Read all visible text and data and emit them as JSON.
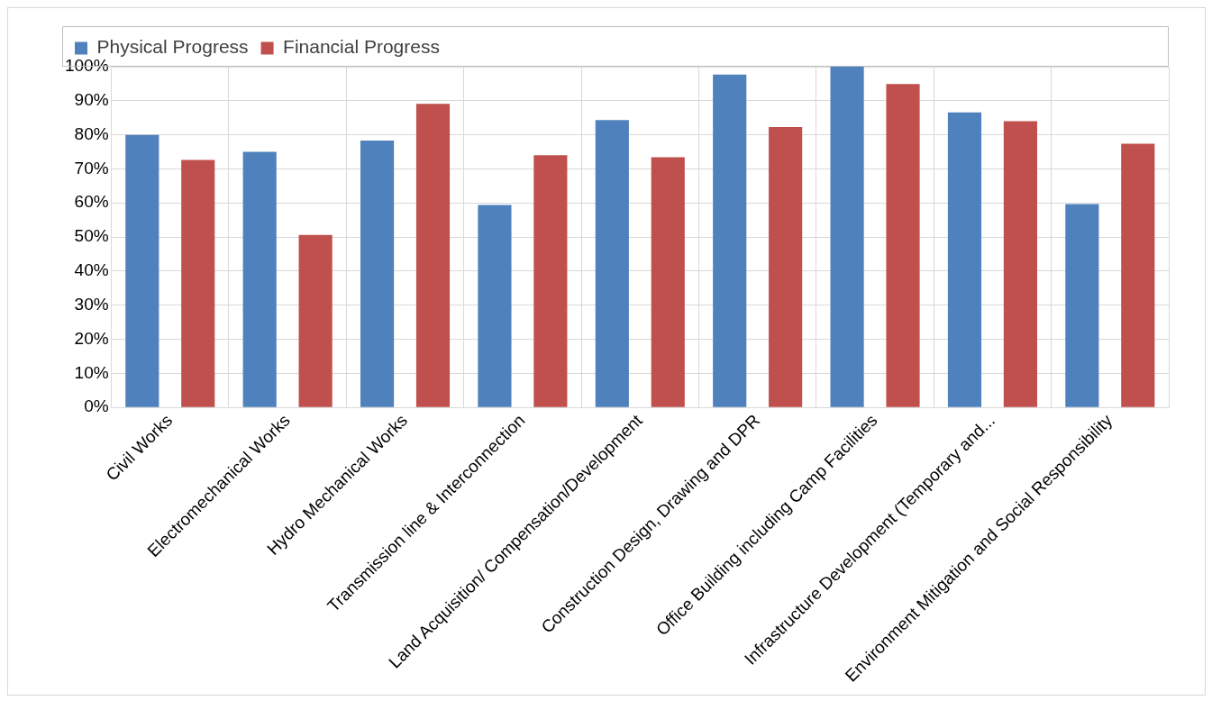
{
  "chart_data": {
    "type": "bar",
    "categories": [
      "Civil Works",
      "Electromechanical Works",
      "Hydro Mechanical Works",
      "Transmission line & Interconnection",
      "Land Acquisition/ Compensation/Development",
      "Construction Design, Drawing and DPR",
      "Office Building including Camp Facilities",
      "Infrastructure Development (Temporary and...",
      "Environment Mitigation and Social Responsibility"
    ],
    "series": [
      {
        "name": "Physical Progress",
        "color": "#4f81bd",
        "values": [
          80,
          75,
          78.3,
          59.4,
          84.3,
          97.7,
          100,
          86.6,
          59.7
        ]
      },
      {
        "name": "Financial Progress",
        "color": "#c0504d",
        "values": [
          72.6,
          50.6,
          89.1,
          74,
          73.4,
          82.3,
          94.9,
          84,
          77.4
        ]
      }
    ],
    "ylim": [
      0,
      100
    ],
    "yticks": [
      {
        "value": 0,
        "label": "0%"
      },
      {
        "value": 10,
        "label": "10%"
      },
      {
        "value": 20,
        "label": "20%"
      },
      {
        "value": 30,
        "label": "30%"
      },
      {
        "value": 40,
        "label": "40%"
      },
      {
        "value": 50,
        "label": "50%"
      },
      {
        "value": 60,
        "label": "60%"
      },
      {
        "value": 70,
        "label": "70%"
      },
      {
        "value": 80,
        "label": "80%"
      },
      {
        "value": 90,
        "label": "90%"
      },
      {
        "value": 100,
        "label": "100%"
      }
    ],
    "grid": true,
    "legend": "top left"
  }
}
